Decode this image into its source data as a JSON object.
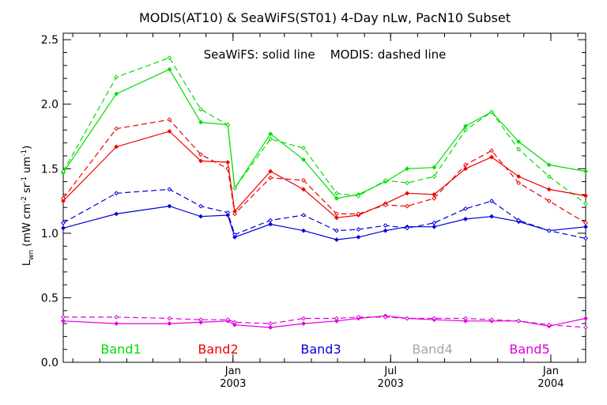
{
  "chart_data": {
    "type": "line",
    "title": "MODIS(AT10) & SeaWiFS(ST01) 4-Day nLw, PacN10 Subset",
    "annotation": "SeaWiFS: solid line    MODIS: dashed line",
    "ylabel_main": "L",
    "ylabel_sub": "wn",
    "ylabel_units_prefix": " (mW cm",
    "ylabel_units_middle": " sr",
    "ylabel_units_suffix": " um",
    "ylabel_exp": "-2",
    "ylabel_exp2": "-1",
    "ylabel_exp3": "-1",
    "ylabel_close": ")",
    "ylim": [
      0.0,
      2.55
    ],
    "yticks": [
      0.0,
      0.5,
      1.0,
      1.5,
      2.0,
      2.5
    ],
    "ytick_labels": [
      "0.0",
      "0.5",
      "1.0",
      "1.5",
      "2.0",
      "2.5"
    ],
    "xlim": [
      "2002-06-20",
      "2004-02-10"
    ],
    "xticks": [
      {
        "date": "2003-01-01",
        "line1": "Jan",
        "line2": "2003"
      },
      {
        "date": "2003-07-01",
        "line1": "Jul",
        "line2": "2003"
      },
      {
        "date": "2004-01-01",
        "line1": "Jan",
        "line2": "2004"
      }
    ],
    "x_seawifs": [
      "2002-06-20",
      "2002-08-20",
      "2002-10-20",
      "2002-11-25",
      "2002-12-26",
      "2003-01-03",
      "2003-02-13",
      "2003-03-23",
      "2003-04-30",
      "2003-05-25",
      "2003-06-25",
      "2003-07-20",
      "2003-08-20",
      "2003-09-25",
      "2003-10-25",
      "2003-11-25",
      "2003-12-30",
      "2004-02-10"
    ],
    "x_modis": [
      "2002-06-20",
      "2002-08-20",
      "2002-10-20",
      "2002-11-25",
      "2002-12-26",
      "2003-01-03",
      "2003-02-13",
      "2003-03-23",
      "2003-04-30",
      "2003-05-25",
      "2003-06-25",
      "2003-07-20",
      "2003-08-20",
      "2003-09-25",
      "2003-10-25",
      "2003-11-25",
      "2003-12-30",
      "2004-02-10"
    ],
    "series": [
      {
        "name": "Band1",
        "color": "#00dd00",
        "seawifs": [
          1.47,
          2.08,
          2.27,
          1.86,
          1.84,
          1.35,
          1.77,
          1.57,
          1.27,
          1.3,
          1.4,
          1.5,
          1.51,
          1.83,
          1.94,
          1.71,
          1.53,
          1.48
        ],
        "modis": [
          1.48,
          2.21,
          2.36,
          1.96,
          1.84,
          1.35,
          1.73,
          1.66,
          1.31,
          1.29,
          1.41,
          1.39,
          1.44,
          1.8,
          1.94,
          1.65,
          1.44,
          1.23
        ]
      },
      {
        "name": "Band2",
        "color": "#ee0000",
        "seawifs": [
          1.25,
          1.67,
          1.79,
          1.56,
          1.55,
          1.17,
          1.48,
          1.34,
          1.12,
          1.14,
          1.23,
          1.31,
          1.3,
          1.5,
          1.59,
          1.44,
          1.34,
          1.29
        ],
        "modis": [
          1.27,
          1.81,
          1.88,
          1.61,
          1.5,
          1.15,
          1.43,
          1.41,
          1.15,
          1.15,
          1.22,
          1.21,
          1.27,
          1.53,
          1.64,
          1.39,
          1.25,
          1.08
        ]
      },
      {
        "name": "Band3",
        "color": "#0000dd",
        "seawifs": [
          1.04,
          1.15,
          1.21,
          1.13,
          1.14,
          0.97,
          1.07,
          1.02,
          0.95,
          0.97,
          1.02,
          1.05,
          1.05,
          1.11,
          1.13,
          1.09,
          1.02,
          1.05
        ],
        "modis": [
          1.08,
          1.31,
          1.34,
          1.21,
          1.16,
          0.99,
          1.1,
          1.14,
          1.02,
          1.03,
          1.06,
          1.04,
          1.08,
          1.19,
          1.25,
          1.1,
          1.02,
          0.96
        ]
      },
      {
        "name": "Band4",
        "color": "#a6a6a6",
        "seawifs": [],
        "modis": []
      },
      {
        "name": "Band5",
        "color": "#dd00dd",
        "seawifs": [
          0.32,
          0.3,
          0.3,
          0.31,
          0.32,
          0.29,
          0.27,
          0.3,
          0.32,
          0.34,
          0.36,
          0.34,
          0.33,
          0.32,
          0.32,
          0.32,
          0.28,
          0.34
        ],
        "modis": [
          0.35,
          0.35,
          0.34,
          0.33,
          0.33,
          0.31,
          0.3,
          0.34,
          0.34,
          0.35,
          0.35,
          0.34,
          0.34,
          0.34,
          0.33,
          0.32,
          0.29,
          0.27
        ]
      }
    ],
    "legend": [
      "Band1",
      "Band2",
      "Band3",
      "Band4",
      "Band5"
    ]
  }
}
